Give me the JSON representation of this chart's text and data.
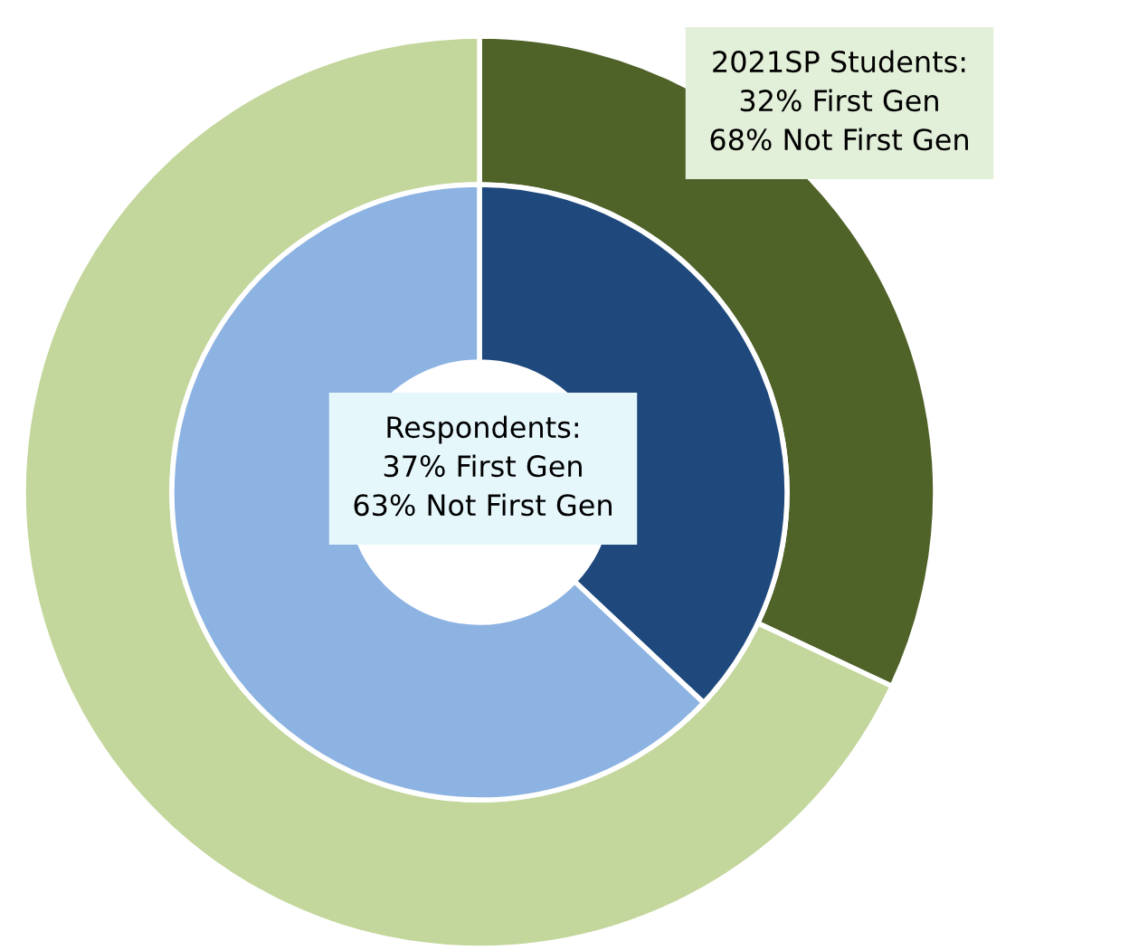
{
  "chart_data": {
    "type": "donut",
    "categories": [
      null,
      null
    ],
    "series": [
      {
        "values": [
          32,
          68
        ],
        "colors": [
          "#4f6228",
          "#c3d69b"
        ]
      },
      {
        "values": [
          37,
          63
        ],
        "colors": [
          "#1f497d",
          "#8db3e2"
        ]
      }
    ],
    "annotations": [
      "2021SP Students:\n32% First Gen\n68% Not First Gen",
      "Respondents:\n37% First Gen\n63% Not First Gen"
    ],
    "legend": false
  }
}
